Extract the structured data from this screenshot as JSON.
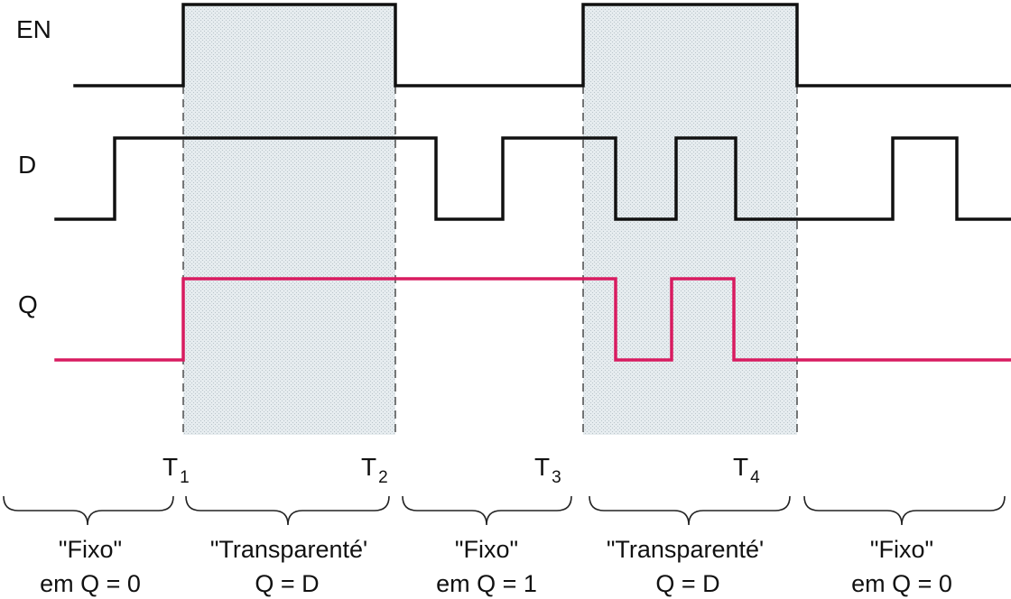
{
  "colors": {
    "signal": "#111111",
    "output": "#d81b60",
    "shade": "#dfe6ea"
  },
  "signals": {
    "en": "EN",
    "d": "D",
    "q": "Q"
  },
  "times": [
    {
      "base": "T",
      "sub": "1"
    },
    {
      "base": "T",
      "sub": "2"
    },
    {
      "base": "T",
      "sub": "3"
    },
    {
      "base": "T",
      "sub": "4"
    }
  ],
  "phases": [
    {
      "line1": "\"Fixo\"",
      "line2": "em Q = 0"
    },
    {
      "line1": "\"Transparenté'",
      "line2": "Q = D"
    },
    {
      "line1": "\"Fixo\"",
      "line2": "em Q = 1"
    },
    {
      "line1": "\"Transparenté'",
      "line2": "Q = D"
    },
    {
      "line1": "\"Fixo\"",
      "line2": "em Q = 0"
    }
  ]
}
